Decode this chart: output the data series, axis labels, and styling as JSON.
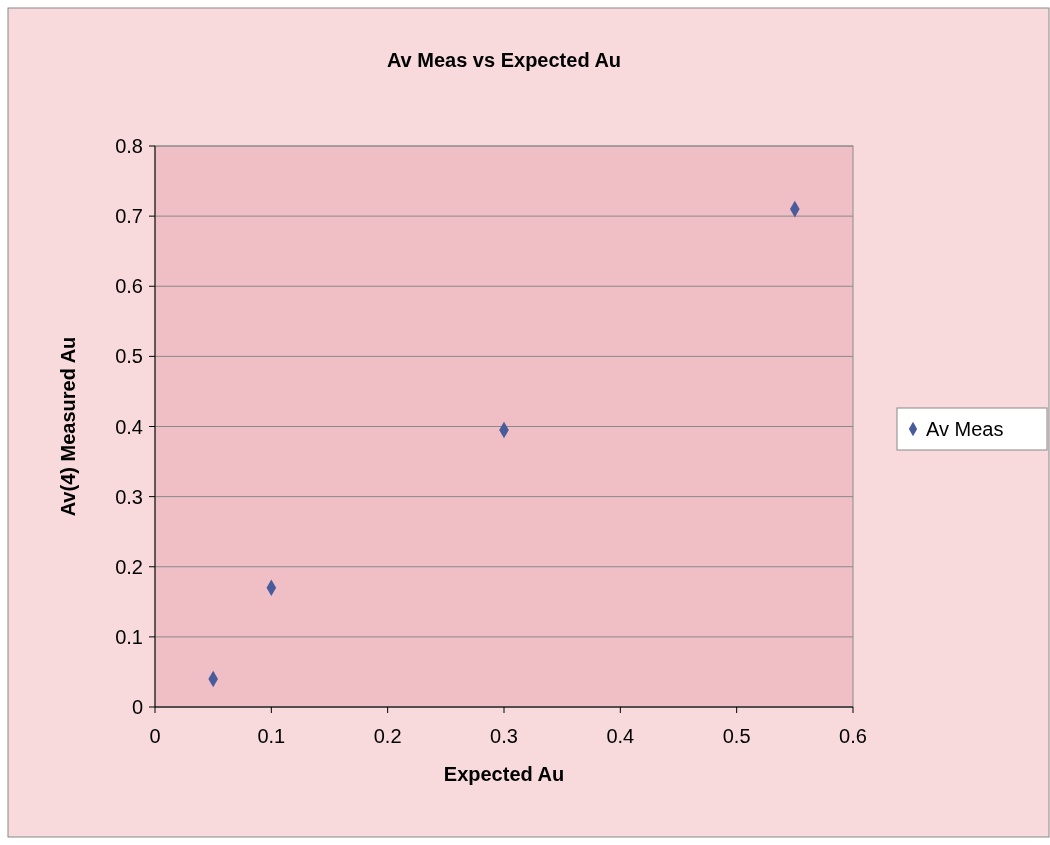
{
  "chart_data": {
    "type": "scatter",
    "title": "Av Meas vs Expected Au",
    "xlabel": "Expected Au",
    "ylabel": "Av(4) Measured Au",
    "x": [
      0.05,
      0.1,
      0.3,
      0.55
    ],
    "series": [
      {
        "name": "Av Meas",
        "color": "#4a5b9c",
        "values": [
          0.04,
          0.17,
          0.395,
          0.71
        ]
      }
    ],
    "xlim": [
      0,
      0.6
    ],
    "xticks": [
      0,
      0.1,
      0.2,
      0.3,
      0.4,
      0.5,
      0.6
    ],
    "ylim": [
      0,
      0.8
    ],
    "yticks": [
      0,
      0.1,
      0.2,
      0.3,
      0.4,
      0.5,
      0.6,
      0.7,
      0.8
    ],
    "grid": "y",
    "legend": "right",
    "marker": "diamond"
  }
}
